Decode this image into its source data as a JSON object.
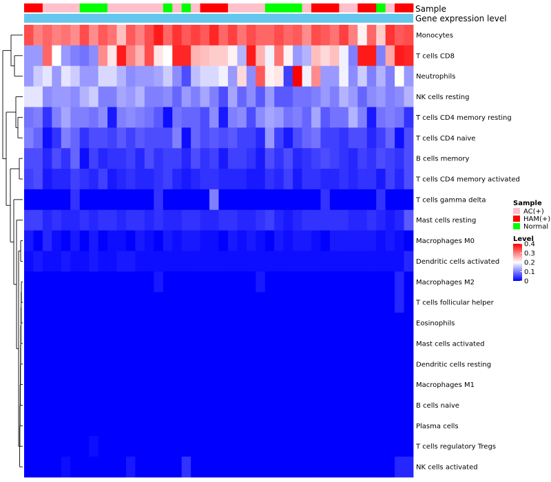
{
  "chart_data": {
    "type": "heatmap",
    "column_annotations": {
      "track_labels": [
        "Sample",
        "Gene expression level"
      ],
      "sample": [
        "HAM(+)",
        "HAM(+)",
        "AC(+)",
        "AC(+)",
        "AC(+)",
        "AC(+)",
        "Normal",
        "Normal",
        "Normal",
        "AC(+)",
        "AC(+)",
        "AC(+)",
        "AC(+)",
        "AC(+)",
        "AC(+)",
        "Normal",
        "AC(+)",
        "Normal",
        "AC(+)",
        "HAM(+)",
        "HAM(+)",
        "HAM(+)",
        "AC(+)",
        "AC(+)",
        "AC(+)",
        "AC(+)",
        "Normal",
        "Normal",
        "Normal",
        "Normal",
        "AC(+)",
        "HAM(+)",
        "HAM(+)",
        "HAM(+)",
        "AC(+)",
        "AC(+)",
        "HAM(+)",
        "HAM(+)",
        "Normal",
        "AC(+)",
        "HAM(+)",
        "HAM(+)"
      ],
      "gene_expression_level_color": "#66C7EE"
    },
    "rows": [
      "Monocytes",
      "T cells CD8",
      "Neutrophils",
      "NK cells resting",
      "T cells CD4 memory resting",
      "T cells CD4 naive",
      "B cells memory",
      "T cells CD4 memory activated",
      "T cells gamma delta",
      "Mast cells resting",
      "Macrophages M0",
      "Dendritic cells activated",
      "Macrophages M2",
      "T cells follicular helper",
      "Eosinophils",
      "Mast cells activated",
      "Dendritic cells resting",
      "Macrophages M1",
      "B cells naive",
      "Plasma cells",
      "T cells regulatory  Tregs",
      "NK cells activated"
    ],
    "n_columns": 42,
    "values": [
      [
        0.34,
        0.3,
        0.32,
        0.3,
        0.31,
        0.29,
        0.34,
        0.29,
        0.33,
        0.31,
        0.25,
        0.33,
        0.3,
        0.34,
        0.38,
        0.32,
        0.36,
        0.33,
        0.35,
        0.33,
        0.37,
        0.32,
        0.35,
        0.31,
        0.34,
        0.32,
        0.32,
        0.34,
        0.32,
        0.33,
        0.29,
        0.34,
        0.33,
        0.31,
        0.35,
        0.3,
        0.21,
        0.32,
        0.24,
        0.36,
        0.33,
        0.34
      ],
      [
        0.12,
        0.12,
        0.32,
        0.2,
        0.12,
        0.1,
        0.09,
        0.11,
        0.29,
        0.22,
        0.38,
        0.3,
        0.26,
        0.34,
        0.22,
        0.2,
        0.37,
        0.37,
        0.26,
        0.25,
        0.24,
        0.24,
        0.21,
        0.14,
        0.38,
        0.26,
        0.19,
        0.31,
        0.21,
        0.12,
        0.14,
        0.25,
        0.23,
        0.25,
        0.19,
        0.1,
        0.38,
        0.38,
        0.1,
        0.27,
        0.38,
        0.37
      ],
      [
        0.12,
        0.16,
        0.18,
        0.12,
        0.18,
        0.16,
        0.12,
        0.12,
        0.17,
        0.17,
        0.14,
        0.11,
        0.12,
        0.12,
        0.13,
        0.16,
        0.11,
        0.06,
        0.15,
        0.17,
        0.17,
        0.19,
        0.12,
        0.23,
        0.11,
        0.33,
        0.21,
        0.22,
        0.05,
        0.41,
        0.19,
        0.29,
        0.12,
        0.12,
        0.19,
        0.11,
        0.16,
        0.1,
        0.14,
        0.1,
        0.2,
        0.12
      ],
      [
        0.18,
        0.18,
        0.11,
        0.12,
        0.12,
        0.11,
        0.14,
        0.16,
        0.1,
        0.1,
        0.13,
        0.12,
        0.14,
        0.1,
        0.1,
        0.11,
        0.08,
        0.12,
        0.1,
        0.13,
        0.1,
        0.06,
        0.13,
        0.08,
        0.11,
        0.07,
        0.12,
        0.07,
        0.07,
        0.09,
        0.09,
        0.1,
        0.12,
        0.1,
        0.14,
        0.12,
        0.08,
        0.11,
        0.12,
        0.1,
        0.11,
        0.14
      ],
      [
        0.09,
        0.1,
        0.04,
        0.1,
        0.13,
        0.1,
        0.1,
        0.09,
        0.11,
        0.02,
        0.1,
        0.11,
        0.1,
        0.09,
        0.07,
        0.01,
        0.09,
        0.08,
        0.08,
        0.06,
        0.11,
        0.02,
        0.1,
        0.11,
        0.06,
        0.11,
        0.13,
        0.12,
        0.09,
        0.1,
        0.08,
        0.13,
        0.07,
        0.09,
        0.09,
        0.14,
        0.1,
        0.02,
        0.09,
        0.1,
        0.09,
        0.04
      ],
      [
        0.1,
        0.08,
        0.01,
        0.04,
        0.1,
        0.08,
        0.04,
        0.06,
        0.06,
        0.05,
        0.07,
        0.05,
        0.07,
        0.06,
        0.06,
        0.06,
        0.1,
        0.01,
        0.08,
        0.06,
        0.07,
        0.06,
        0.07,
        0.05,
        0.05,
        0.03,
        0.12,
        0.05,
        0.02,
        0.06,
        0.08,
        0.09,
        0.05,
        0.05,
        0.04,
        0.06,
        0.06,
        0.03,
        0.05,
        0.08,
        0.01,
        0.06
      ],
      [
        0.06,
        0.06,
        0.03,
        0.06,
        0.04,
        0.08,
        0.01,
        0.05,
        0.03,
        0.04,
        0.04,
        0.05,
        0.03,
        0.06,
        0.04,
        0.05,
        0.05,
        0.03,
        0.06,
        0.04,
        0.05,
        0.02,
        0.05,
        0.05,
        0.04,
        0.02,
        0.06,
        0.04,
        0.06,
        0.03,
        0.04,
        0.05,
        0.06,
        0.05,
        0.04,
        0.03,
        0.05,
        0.04,
        0.06,
        0.05,
        0.04,
        0.06
      ],
      [
        0.05,
        0.06,
        0.02,
        0.03,
        0.03,
        0.05,
        0.04,
        0.03,
        0.05,
        0.02,
        0.03,
        0.04,
        0.03,
        0.03,
        0.04,
        0.05,
        0.03,
        0.02,
        0.03,
        0.04,
        0.04,
        0.03,
        0.03,
        0.03,
        0.02,
        0.02,
        0.04,
        0.03,
        0.05,
        0.02,
        0.04,
        0.04,
        0.03,
        0.03,
        0.04,
        0.03,
        0.04,
        0.04,
        0.02,
        0.05,
        0.03,
        0.06
      ],
      [
        0.0,
        0.0,
        0.0,
        0.0,
        0.0,
        0.04,
        0.0,
        0.0,
        0.0,
        0.0,
        0.0,
        0.0,
        0.0,
        0.0,
        0.04,
        0.0,
        0.0,
        0.0,
        0.0,
        0.0,
        0.1,
        0.0,
        0.0,
        0.0,
        0.0,
        0.0,
        0.0,
        0.0,
        0.0,
        0.0,
        0.0,
        0.0,
        0.04,
        0.0,
        0.0,
        0.0,
        0.0,
        0.0,
        0.04,
        0.0,
        0.0,
        0.0
      ],
      [
        0.05,
        0.05,
        0.03,
        0.04,
        0.03,
        0.03,
        0.04,
        0.03,
        0.04,
        0.04,
        0.03,
        0.04,
        0.04,
        0.03,
        0.04,
        0.03,
        0.03,
        0.04,
        0.04,
        0.03,
        0.03,
        0.04,
        0.04,
        0.03,
        0.03,
        0.04,
        0.05,
        0.03,
        0.02,
        0.03,
        0.04,
        0.04,
        0.04,
        0.04,
        0.04,
        0.03,
        0.03,
        0.04,
        0.03,
        0.02,
        0.03,
        0.07
      ],
      [
        0.02,
        0.0,
        0.03,
        0.01,
        0.0,
        0.02,
        0.0,
        0.02,
        0.0,
        0.01,
        0.01,
        0.0,
        0.02,
        0.01,
        0.0,
        0.02,
        0.01,
        0.02,
        0.02,
        0.01,
        0.01,
        0.0,
        0.02,
        0.01,
        0.02,
        0.01,
        0.0,
        0.02,
        0.01,
        0.02,
        0.02,
        0.01,
        0.0,
        0.02,
        0.02,
        0.02,
        0.02,
        0.02,
        0.01,
        0.02,
        0.01,
        0.0
      ],
      [
        0.01,
        0.02,
        0.01,
        0.01,
        0.02,
        0.01,
        0.01,
        0.02,
        0.01,
        0.01,
        0.02,
        0.02,
        0.01,
        0.01,
        0.01,
        0.01,
        0.01,
        0.01,
        0.01,
        0.01,
        0.01,
        0.01,
        0.01,
        0.01,
        0.01,
        0.01,
        0.01,
        0.01,
        0.01,
        0.01,
        0.01,
        0.01,
        0.01,
        0.01,
        0.01,
        0.01,
        0.01,
        0.01,
        0.01,
        0.01,
        0.01,
        0.03
      ],
      [
        0.0,
        0.0,
        0.0,
        0.0,
        0.0,
        0.0,
        0.0,
        0.0,
        0.0,
        0.0,
        0.0,
        0.0,
        0.0,
        0.0,
        0.02,
        0.0,
        0.0,
        0.0,
        0.0,
        0.0,
        0.0,
        0.0,
        0.0,
        0.0,
        0.0,
        0.02,
        0.0,
        0.0,
        0.0,
        0.0,
        0.0,
        0.0,
        0.0,
        0.0,
        0.0,
        0.0,
        0.0,
        0.0,
        0.0,
        0.0,
        0.03,
        0.0
      ],
      [
        0.0,
        0.0,
        0.0,
        0.0,
        0.0,
        0.0,
        0.0,
        0.0,
        0.0,
        0.0,
        0.0,
        0.0,
        0.0,
        0.0,
        0.0,
        0.0,
        0.0,
        0.0,
        0.0,
        0.0,
        0.0,
        0.0,
        0.0,
        0.0,
        0.0,
        0.0,
        0.0,
        0.0,
        0.0,
        0.0,
        0.0,
        0.0,
        0.0,
        0.0,
        0.0,
        0.0,
        0.0,
        0.0,
        0.0,
        0.0,
        0.03,
        0.0
      ],
      [
        0.0,
        0.0,
        0.0,
        0.0,
        0.0,
        0.0,
        0.0,
        0.0,
        0.0,
        0.0,
        0.0,
        0.0,
        0.0,
        0.0,
        0.0,
        0.0,
        0.0,
        0.0,
        0.0,
        0.0,
        0.0,
        0.0,
        0.0,
        0.0,
        0.0,
        0.0,
        0.0,
        0.0,
        0.0,
        0.0,
        0.0,
        0.0,
        0.0,
        0.0,
        0.0,
        0.0,
        0.0,
        0.0,
        0.0,
        0.0,
        0.0,
        0.0
      ],
      [
        0.0,
        0.0,
        0.0,
        0.0,
        0.0,
        0.0,
        0.0,
        0.0,
        0.0,
        0.0,
        0.0,
        0.0,
        0.0,
        0.0,
        0.0,
        0.0,
        0.0,
        0.0,
        0.0,
        0.0,
        0.0,
        0.0,
        0.0,
        0.0,
        0.0,
        0.0,
        0.0,
        0.0,
        0.0,
        0.0,
        0.0,
        0.0,
        0.0,
        0.0,
        0.0,
        0.0,
        0.0,
        0.0,
        0.0,
        0.0,
        0.0,
        0.0
      ],
      [
        0.0,
        0.0,
        0.0,
        0.0,
        0.0,
        0.0,
        0.0,
        0.0,
        0.0,
        0.0,
        0.0,
        0.0,
        0.0,
        0.0,
        0.0,
        0.0,
        0.0,
        0.0,
        0.0,
        0.0,
        0.0,
        0.0,
        0.0,
        0.0,
        0.0,
        0.0,
        0.0,
        0.0,
        0.0,
        0.0,
        0.0,
        0.0,
        0.0,
        0.0,
        0.0,
        0.0,
        0.0,
        0.0,
        0.0,
        0.0,
        0.0,
        0.0
      ],
      [
        0.0,
        0.0,
        0.0,
        0.0,
        0.0,
        0.0,
        0.0,
        0.0,
        0.0,
        0.0,
        0.0,
        0.0,
        0.0,
        0.0,
        0.0,
        0.0,
        0.0,
        0.0,
        0.0,
        0.0,
        0.0,
        0.0,
        0.0,
        0.0,
        0.0,
        0.0,
        0.0,
        0.0,
        0.0,
        0.0,
        0.0,
        0.0,
        0.0,
        0.0,
        0.0,
        0.0,
        0.0,
        0.0,
        0.0,
        0.0,
        0.0,
        0.0
      ],
      [
        0.0,
        0.0,
        0.0,
        0.0,
        0.0,
        0.0,
        0.0,
        0.0,
        0.0,
        0.0,
        0.0,
        0.0,
        0.0,
        0.0,
        0.0,
        0.0,
        0.0,
        0.0,
        0.0,
        0.0,
        0.0,
        0.0,
        0.0,
        0.0,
        0.0,
        0.0,
        0.0,
        0.0,
        0.0,
        0.0,
        0.0,
        0.0,
        0.0,
        0.0,
        0.0,
        0.0,
        0.0,
        0.0,
        0.0,
        0.0,
        0.0,
        0.0
      ],
      [
        0.0,
        0.0,
        0.0,
        0.0,
        0.0,
        0.0,
        0.0,
        0.0,
        0.0,
        0.0,
        0.0,
        0.0,
        0.0,
        0.0,
        0.0,
        0.0,
        0.0,
        0.0,
        0.0,
        0.0,
        0.0,
        0.0,
        0.0,
        0.0,
        0.0,
        0.0,
        0.0,
        0.0,
        0.0,
        0.0,
        0.0,
        0.0,
        0.0,
        0.0,
        0.0,
        0.0,
        0.0,
        0.0,
        0.0,
        0.0,
        0.0,
        0.0
      ],
      [
        0.0,
        0.0,
        0.0,
        0.0,
        0.0,
        0.0,
        0.0,
        0.01,
        0.0,
        0.0,
        0.0,
        0.0,
        0.0,
        0.0,
        0.0,
        0.0,
        0.0,
        0.0,
        0.0,
        0.0,
        0.0,
        0.0,
        0.0,
        0.0,
        0.0,
        0.0,
        0.0,
        0.0,
        0.0,
        0.0,
        0.0,
        0.0,
        0.0,
        0.0,
        0.0,
        0.0,
        0.0,
        0.0,
        0.0,
        0.0,
        0.0,
        0.0
      ],
      [
        0.0,
        0.0,
        0.0,
        0.0,
        0.01,
        0.0,
        0.0,
        0.0,
        0.0,
        0.0,
        0.0,
        0.02,
        0.0,
        0.0,
        0.0,
        0.0,
        0.0,
        0.04,
        0.0,
        0.0,
        0.0,
        0.0,
        0.0,
        0.0,
        0.0,
        0.0,
        0.0,
        0.0,
        0.0,
        0.0,
        0.0,
        0.0,
        0.0,
        0.0,
        0.0,
        0.0,
        0.0,
        0.0,
        0.0,
        0.0,
        0.03,
        0.03
      ]
    ],
    "color_scale": {
      "min": 0,
      "max": 0.4,
      "low": "#0000FF",
      "mid": "#FFFFFF",
      "high": "#FF0000",
      "mid_value": 0.2
    },
    "legend": {
      "sample_title": "Sample",
      "sample_levels": [
        {
          "label": "AC(+)",
          "color": "#FFC0CB"
        },
        {
          "label": "HAM(+)",
          "color": "#FF0000"
        },
        {
          "label": "Normal",
          "color": "#00FF00"
        }
      ],
      "level_title": "Level",
      "level_ticks": [
        "0.4",
        "0.3",
        "0.2",
        "0.1",
        "0"
      ],
      "level_tick_values": [
        0.4,
        0.3,
        0.2,
        0.1,
        0
      ],
      "placement": "right"
    },
    "row_dendrogram": true
  }
}
